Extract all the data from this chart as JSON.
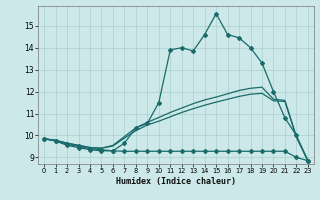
{
  "xlabel": "Humidex (Indice chaleur)",
  "background_color": "#cce8e8",
  "line_color": "#1a6b6b",
  "grid_color": "#aacfcf",
  "xlim": [
    -0.5,
    23.5
  ],
  "ylim": [
    8.7,
    15.9
  ],
  "xticks": [
    0,
    1,
    2,
    3,
    4,
    5,
    6,
    7,
    8,
    9,
    10,
    11,
    12,
    13,
    14,
    15,
    16,
    17,
    18,
    19,
    20,
    21,
    22,
    23
  ],
  "yticks": [
    9,
    10,
    11,
    12,
    13,
    14,
    15
  ],
  "curve_main_x": [
    0,
    1,
    2,
    3,
    4,
    5,
    6,
    7,
    8,
    9,
    10,
    11,
    12,
    13,
    14,
    15,
    16,
    17,
    18,
    19,
    20,
    21,
    22,
    23
  ],
  "curve_main_y": [
    9.85,
    9.75,
    9.55,
    9.45,
    9.35,
    9.3,
    9.3,
    9.65,
    10.35,
    10.55,
    11.5,
    13.9,
    14.0,
    13.85,
    14.6,
    15.55,
    14.6,
    14.45,
    14.0,
    13.3,
    12.0,
    10.8,
    10.0,
    8.85
  ],
  "curve_min_x": [
    0,
    1,
    2,
    3,
    4,
    5,
    6,
    7,
    8,
    9,
    10,
    11,
    12,
    13,
    14,
    15,
    16,
    17,
    18,
    19,
    20,
    21,
    22,
    23
  ],
  "curve_min_y": [
    9.85,
    9.75,
    9.6,
    9.5,
    9.4,
    9.35,
    9.3,
    9.28,
    9.28,
    9.28,
    9.28,
    9.28,
    9.28,
    9.28,
    9.28,
    9.28,
    9.28,
    9.28,
    9.28,
    9.28,
    9.28,
    9.28,
    9.0,
    8.85
  ],
  "curve_reg_upper_x": [
    0,
    1,
    2,
    3,
    4,
    5,
    6,
    7,
    8,
    9,
    10,
    11,
    12,
    13,
    14,
    15,
    16,
    17,
    18,
    19,
    20,
    21,
    22,
    23
  ],
  "curve_reg_upper_y": [
    9.85,
    9.78,
    9.65,
    9.55,
    9.45,
    9.42,
    9.55,
    9.95,
    10.35,
    10.6,
    10.82,
    11.05,
    11.25,
    11.45,
    11.62,
    11.75,
    11.9,
    12.05,
    12.15,
    12.2,
    11.65,
    11.6,
    9.95,
    8.85
  ],
  "curve_reg_lower_x": [
    0,
    1,
    2,
    3,
    4,
    5,
    6,
    7,
    8,
    9,
    10,
    11,
    12,
    13,
    14,
    15,
    16,
    17,
    18,
    19,
    20,
    21,
    22,
    23
  ],
  "curve_reg_lower_y": [
    9.85,
    9.78,
    9.65,
    9.55,
    9.45,
    9.42,
    9.52,
    9.88,
    10.22,
    10.48,
    10.65,
    10.85,
    11.05,
    11.22,
    11.38,
    11.52,
    11.65,
    11.78,
    11.88,
    11.92,
    11.58,
    11.55,
    9.92,
    8.85
  ]
}
